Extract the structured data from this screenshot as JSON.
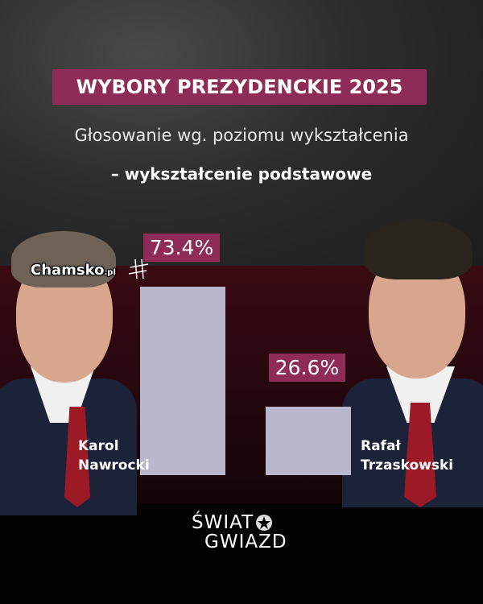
{
  "header": {
    "title": "WYBORY PREZYDENCKIE 2025",
    "subtitle": "Głosowanie wg. poziomu wykształcenia",
    "subtitle2": "– wykształcenie podstawowe"
  },
  "colors": {
    "accent": "#8e2c57",
    "bar": "#b9b7cb"
  },
  "chart_data": {
    "type": "bar",
    "title": "WYBORY PREZYDENCKIE 2025",
    "subtitle": "Głosowanie wg. poziomu wykształcenia – wykształcenie podstawowe",
    "categories": [
      "Karol Nawrocki",
      "Rafał Trzaskowski"
    ],
    "values": [
      73.4,
      26.6
    ],
    "data_labels": [
      "73.4%",
      "26.6%"
    ],
    "ylim": [
      0,
      73.4
    ],
    "grid": false,
    "unit": "%"
  },
  "candidates": {
    "left": {
      "first": "Karol",
      "last": "Nawrocki"
    },
    "right": {
      "first": "Rafał",
      "last": "Trzaskowski"
    }
  },
  "watermark": {
    "main": "Chamsko",
    "suffix": ".pl"
  },
  "logo": {
    "line1": "ŚWIAT",
    "line2": "GWIAZD"
  }
}
